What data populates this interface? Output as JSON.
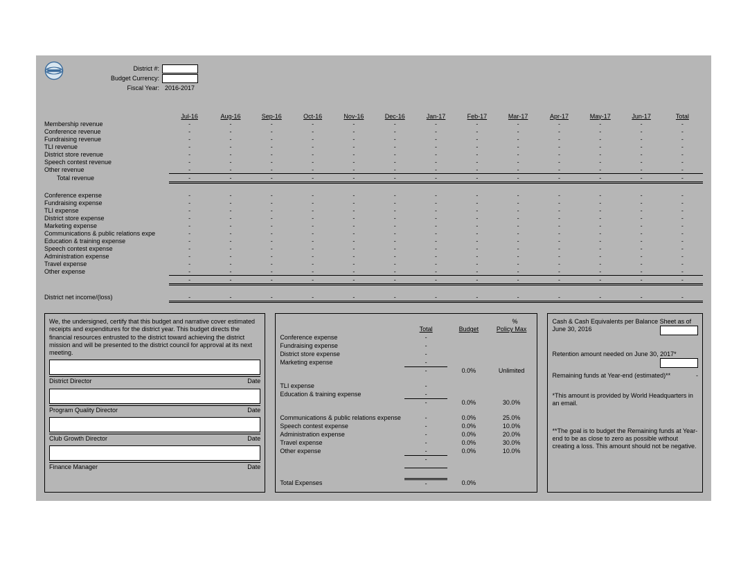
{
  "header": {
    "district_label": "District #:",
    "currency_label": "Budget Currency:",
    "fiscal_label": "Fiscal Year:",
    "fiscal_value": "2016-2017"
  },
  "months": [
    "Jul-16",
    "Aug-16",
    "Sep-16",
    "Oct-16",
    "Nov-16",
    "Dec-16",
    "Jan-17",
    "Feb-17",
    "Mar-17",
    "Apr-17",
    "May-17",
    "Jun-17",
    "Total"
  ],
  "revenue_rows": [
    "Membership revenue",
    "Conference revenue",
    "Fundraising revenue",
    "TLI revenue",
    "District store revenue",
    "Speech contest revenue",
    "Other revenue"
  ],
  "total_revenue_label": "Total revenue",
  "expense_rows": [
    "Conference expense",
    "Fundraising expense",
    "TLI expense",
    "District store expense",
    "Marketing expense",
    "Communications & public relations expe",
    "Education & training expense",
    "Speech contest expense",
    "Administration expense",
    "Travel expense",
    "Other expense"
  ],
  "net_label": "District net income/(loss)",
  "dash": "-",
  "cert_text": "We, the undersigned, certify that this budget and narrative cover estimated receipts and expenditures for the district year. This budget directs the financial resources entrusted to the district toward achieving the district mission and will be presented to the district council for approval at its next meeting.",
  "sig_roles": [
    "District Director",
    "Program Quality Director",
    "Club Growth Director",
    "Finance Manager"
  ],
  "date_label": "Date",
  "pct_symbol": "%",
  "bud_headers": [
    "Total",
    "Budget",
    "Policy Max"
  ],
  "bud_group1": [
    {
      "l": "Conference expense",
      "t": "-",
      "b": "",
      "p": ""
    },
    {
      "l": "Fundraising expense",
      "t": "-",
      "b": "",
      "p": ""
    },
    {
      "l": "District store expense",
      "t": "-",
      "b": "",
      "p": ""
    },
    {
      "l": "Marketing expense",
      "t": "-",
      "b": "",
      "p": ""
    }
  ],
  "bud_group1_sum": {
    "t": "-",
    "b": "0.0%",
    "p": "Unlimited"
  },
  "bud_group2": [
    {
      "l": "TLI expense",
      "t": "-",
      "b": "",
      "p": ""
    },
    {
      "l": "Education & training expense",
      "t": "-",
      "b": "",
      "p": ""
    }
  ],
  "bud_group2_sum": {
    "t": "-",
    "b": "0.0%",
    "p": "30.0%"
  },
  "bud_group3": [
    {
      "l": "Communications & public relations expense",
      "t": "-",
      "b": "0.0%",
      "p": "25.0%"
    },
    {
      "l": "Speech contest expense",
      "t": "-",
      "b": "0.0%",
      "p": "10.0%"
    },
    {
      "l": "Administration expense",
      "t": "-",
      "b": "0.0%",
      "p": "20.0%"
    },
    {
      "l": "Travel expense",
      "t": "-",
      "b": "0.0%",
      "p": "30.0%"
    },
    {
      "l": "Other expense",
      "t": "-",
      "b": "0.0%",
      "p": "10.0%"
    }
  ],
  "bud_total": {
    "l": "Total Expenses",
    "t": "-",
    "b": "0.0%"
  },
  "cash": {
    "l1": "Cash & Cash Equivalents per Balance Sheet as of June 30, 2016",
    "l2": "Retention amount needed on June 30, 2017*",
    "l3": "Remaining funds at Year-end (estimated)**",
    "l3v": "-",
    "note1": "*This amount is provided by World Headquarters in an email.",
    "note2": "**The goal is to budget the Remaining funds at Year-end to be as close to zero as possible without creating a loss.  This amount should not be negative."
  },
  "colors": {
    "sheet_bg": "#b6b6b6",
    "field_bg": "#ffffff",
    "border": "#000000",
    "text": "#000000"
  }
}
